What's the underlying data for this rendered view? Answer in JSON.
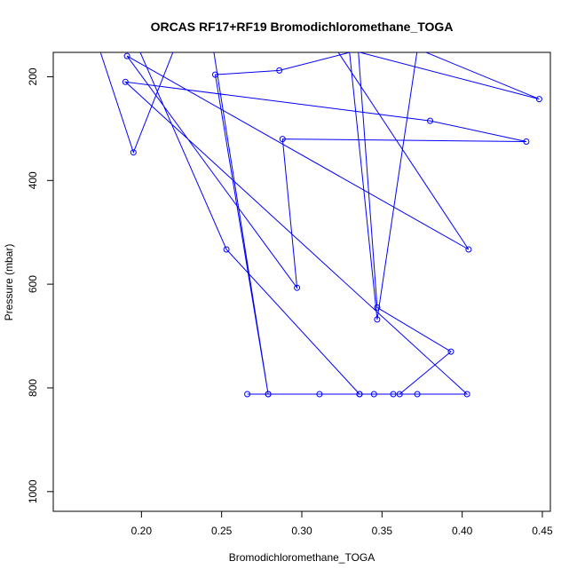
{
  "chart_data": {
    "type": "line",
    "title": "ORCAS RF17+RF19 Bromodichloromethane_TOGA",
    "xlabel": "Bromodichloromethane_TOGA",
    "ylabel": "Pressure (mbar)",
    "xlim": [
      0.145,
      0.455
    ],
    "ylim": [
      1038,
      153
    ],
    "y_inverted": true,
    "xticks": [
      0.2,
      0.25,
      0.3,
      0.35,
      0.4,
      0.45
    ],
    "xtick_labels": [
      "0.20",
      "0.25",
      "0.30",
      "0.35",
      "0.40",
      "0.45"
    ],
    "yticks": [
      200,
      400,
      600,
      800,
      1000
    ],
    "ytick_labels": [
      "200",
      "400",
      "600",
      "800",
      "1000"
    ],
    "grid": false,
    "series": [
      {
        "color": "#0000ff",
        "marker": "open-circle",
        "points": [
          {
            "x": 0.172,
            "y": 130,
            "marker": false
          },
          {
            "x": 0.195,
            "y": 346,
            "marker": true
          },
          {
            "x": 0.22,
            "y": 150,
            "marker": false
          },
          {
            "x": 0.335,
            "y": 140,
            "marker": false
          },
          {
            "x": 0.347,
            "y": 645,
            "marker": true
          },
          {
            "x": 0.393,
            "y": 730,
            "marker": true
          },
          {
            "x": 0.361,
            "y": 812,
            "marker": true
          },
          {
            "x": 0.266,
            "y": 812,
            "marker": true
          },
          {
            "x": 0.279,
            "y": 812,
            "marker": true
          },
          {
            "x": 0.311,
            "y": 812,
            "marker": true
          },
          {
            "x": 0.336,
            "y": 812,
            "marker": true
          },
          {
            "x": 0.345,
            "y": 812,
            "marker": true
          },
          {
            "x": 0.357,
            "y": 812,
            "marker": true
          },
          {
            "x": 0.372,
            "y": 812,
            "marker": true
          },
          {
            "x": 0.403,
            "y": 812,
            "marker": true
          },
          {
            "x": 0.19,
            "y": 210,
            "marker": true
          },
          {
            "x": 0.38,
            "y": 285,
            "marker": true
          },
          {
            "x": 0.44,
            "y": 325,
            "marker": true
          },
          {
            "x": 0.288,
            "y": 320,
            "marker": true
          },
          {
            "x": 0.297,
            "y": 607,
            "marker": true
          },
          {
            "x": 0.191,
            "y": 160,
            "marker": true
          },
          {
            "x": 0.404,
            "y": 533,
            "marker": true
          },
          {
            "x": 0.32,
            "y": 140,
            "marker": false
          },
          {
            "x": 0.448,
            "y": 243,
            "marker": true
          },
          {
            "x": 0.375,
            "y": 150,
            "marker": false
          },
          {
            "x": 0.372,
            "y": 148,
            "marker": true
          },
          {
            "x": 0.347,
            "y": 668,
            "marker": true
          },
          {
            "x": 0.329,
            "y": 130,
            "marker": false
          },
          {
            "x": 0.244,
            "y": 130,
            "marker": false
          },
          {
            "x": 0.279,
            "y": 812,
            "marker": true
          },
          {
            "x": 0.246,
            "y": 196,
            "marker": true
          },
          {
            "x": 0.286,
            "y": 188,
            "marker": true
          },
          {
            "x": 0.34,
            "y": 145,
            "marker": false
          },
          {
            "x": 0.196,
            "y": 130,
            "marker": false
          },
          {
            "x": 0.253,
            "y": 533,
            "marker": true
          },
          {
            "x": 0.336,
            "y": 812,
            "marker": true
          }
        ]
      }
    ]
  }
}
